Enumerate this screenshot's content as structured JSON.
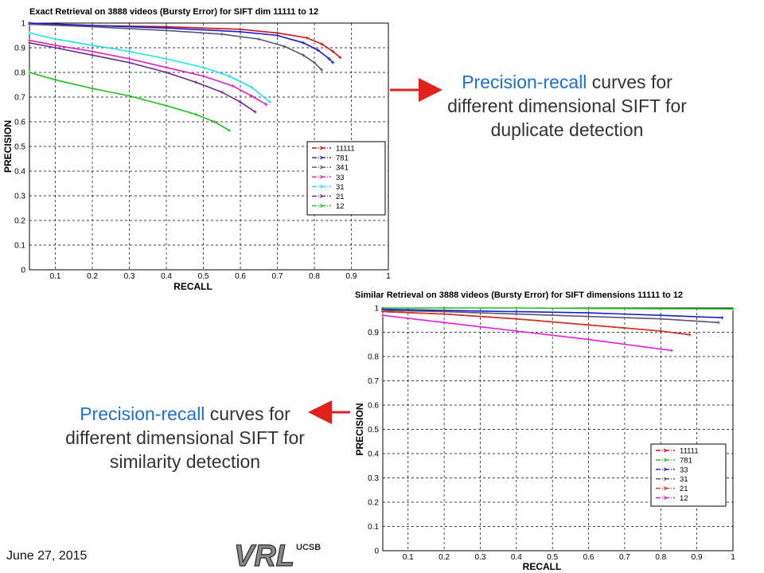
{
  "slide": {
    "date": "June 27, 2015",
    "logo_text": "VRL",
    "logo_sub": "UCSB",
    "caption_top": {
      "highlight": "Precision-recall",
      "rest_line1": " curves for",
      "line2": "different dimensional SIFT for",
      "line3": "duplicate detection"
    },
    "caption_bottom": {
      "highlight": "Precision-recall",
      "rest_line1": " curves for",
      "line2": "different dimensional SIFT for",
      "line3": "similarity detection"
    },
    "colors": {
      "arrow": "#e0211d",
      "highlight": "#1f6fd0",
      "grid": "#000000"
    }
  },
  "chart_data": [
    {
      "type": "line",
      "title": "Exact Retrieval on 3888 videos (Bursty Error) for SIFT dim 11111 to 12",
      "xlabel": "RECALL",
      "ylabel": "PRECISION",
      "xlim": [
        0.03,
        1
      ],
      "ylim": [
        0,
        1
      ],
      "xticks": [
        0.1,
        0.2,
        0.3,
        0.4,
        0.5,
        0.6,
        0.7,
        0.8,
        0.9,
        1
      ],
      "yticks": [
        0,
        0.1,
        0.2,
        0.3,
        0.4,
        0.5,
        0.6,
        0.7,
        0.8,
        0.9,
        1
      ],
      "grid": true,
      "legend": "right",
      "series": [
        {
          "name": "11111",
          "color": "#c8141e",
          "x": [
            0.03,
            0.2,
            0.4,
            0.6,
            0.7,
            0.78,
            0.82,
            0.85,
            0.87
          ],
          "y": [
            1.0,
            0.99,
            0.985,
            0.975,
            0.96,
            0.94,
            0.915,
            0.885,
            0.86
          ]
        },
        {
          "name": "781",
          "color": "#1c1cc8",
          "x": [
            0.03,
            0.2,
            0.4,
            0.6,
            0.7,
            0.77,
            0.81,
            0.84,
            0.85
          ],
          "y": [
            1.0,
            0.99,
            0.98,
            0.965,
            0.95,
            0.92,
            0.89,
            0.855,
            0.84
          ]
        },
        {
          "name": "341",
          "color": "#55557a",
          "x": [
            0.03,
            0.2,
            0.4,
            0.55,
            0.65,
            0.72,
            0.77,
            0.8,
            0.82
          ],
          "y": [
            0.995,
            0.985,
            0.97,
            0.955,
            0.935,
            0.905,
            0.87,
            0.84,
            0.81
          ]
        },
        {
          "name": "33",
          "color": "#e020c0",
          "x": [
            0.03,
            0.1,
            0.2,
            0.3,
            0.4,
            0.5,
            0.58,
            0.63,
            0.67
          ],
          "y": [
            0.93,
            0.91,
            0.885,
            0.855,
            0.82,
            0.785,
            0.745,
            0.705,
            0.67
          ]
        },
        {
          "name": "31",
          "color": "#20e0ee",
          "x": [
            0.03,
            0.1,
            0.2,
            0.3,
            0.4,
            0.5,
            0.57,
            0.63,
            0.68
          ],
          "y": [
            0.96,
            0.935,
            0.91,
            0.885,
            0.855,
            0.82,
            0.785,
            0.74,
            0.68
          ]
        },
        {
          "name": "21",
          "color": "#6a2a8a",
          "x": [
            0.03,
            0.1,
            0.2,
            0.3,
            0.4,
            0.48,
            0.55,
            0.6,
            0.64
          ],
          "y": [
            0.92,
            0.9,
            0.87,
            0.84,
            0.8,
            0.76,
            0.72,
            0.68,
            0.64
          ]
        },
        {
          "name": "12",
          "color": "#20c020",
          "x": [
            0.03,
            0.1,
            0.2,
            0.3,
            0.4,
            0.48,
            0.53,
            0.57
          ],
          "y": [
            0.8,
            0.77,
            0.735,
            0.705,
            0.665,
            0.63,
            0.6,
            0.565
          ]
        }
      ]
    },
    {
      "type": "line",
      "title": "Similar Retrieval on 3888 videos (Bursty Error) for SIFT dimensions 11111 to 12",
      "xlabel": "RECALL",
      "ylabel": "PRECISION",
      "xlim": [
        0.03,
        1
      ],
      "ylim": [
        0,
        1
      ],
      "xticks": [
        0.1,
        0.2,
        0.3,
        0.4,
        0.5,
        0.6,
        0.7,
        0.8,
        0.9,
        1
      ],
      "yticks": [
        0,
        0.1,
        0.2,
        0.3,
        0.4,
        0.5,
        0.6,
        0.7,
        0.8,
        0.9,
        1
      ],
      "grid": true,
      "legend": "bottom-right",
      "series": [
        {
          "name": "11111",
          "color": "#c8141e",
          "x": [
            0.03,
            0.2,
            0.4,
            0.6,
            0.8,
            0.88
          ],
          "y": [
            0.985,
            0.975,
            0.955,
            0.93,
            0.905,
            0.89
          ]
        },
        {
          "name": "781",
          "color": "#20c020",
          "x": [
            0.03,
            0.2,
            0.4,
            0.6,
            0.8,
            1.0
          ],
          "y": [
            1.0,
            1.0,
            1.0,
            0.998,
            0.997,
            0.996
          ]
        },
        {
          "name": "33",
          "color": "#1c1cc8",
          "x": [
            0.03,
            0.2,
            0.4,
            0.6,
            0.8,
            0.97
          ],
          "y": [
            0.995,
            0.99,
            0.985,
            0.98,
            0.97,
            0.96
          ]
        },
        {
          "name": "31",
          "color": "#55557a",
          "x": [
            0.03,
            0.2,
            0.4,
            0.6,
            0.8,
            0.96
          ],
          "y": [
            0.99,
            0.985,
            0.975,
            0.965,
            0.955,
            0.94
          ]
        },
        {
          "name": "21",
          "color": "#c83a2a",
          "x": [
            0.03,
            0.2,
            0.4,
            0.6,
            0.8,
            0.88
          ],
          "y": [
            0.985,
            0.975,
            0.955,
            0.93,
            0.905,
            0.89
          ]
        },
        {
          "name": "12",
          "color": "#e020e0",
          "x": [
            0.03,
            0.2,
            0.4,
            0.6,
            0.83
          ],
          "y": [
            0.97,
            0.94,
            0.905,
            0.87,
            0.825
          ]
        }
      ]
    }
  ]
}
